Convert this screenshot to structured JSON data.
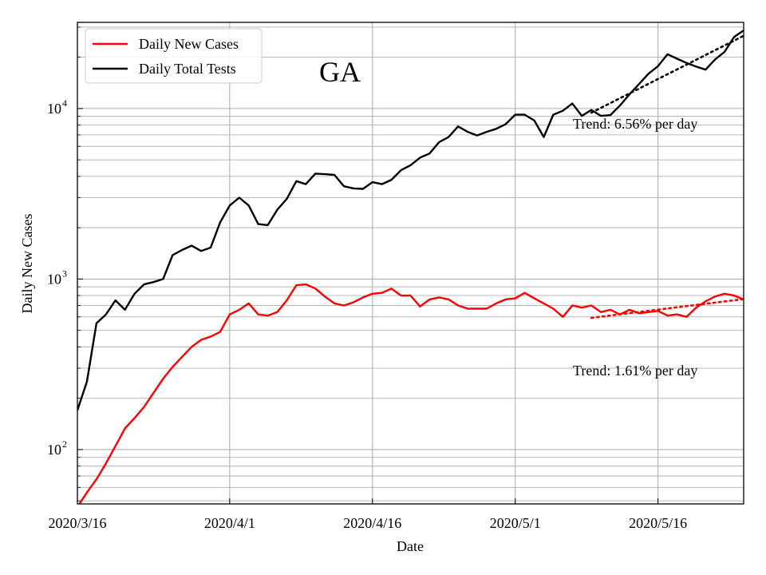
{
  "chart_data": {
    "type": "line",
    "title": "GA",
    "xlabel": "Date",
    "ylabel": "Daily New Cases",
    "yscale": "log",
    "ylim": [
      48,
      32000
    ],
    "xlim": [
      "2020-03-16",
      "2020-05-25"
    ],
    "grid": true,
    "grid_minor_y": true,
    "legend_position": "top-left",
    "x_ticks": [
      "2020/3/16",
      "2020/4/1",
      "2020/4/16",
      "2020/5/1",
      "2020/5/16"
    ],
    "y_ticks": [
      {
        "base": "10",
        "exp": "2",
        "value": 100
      },
      {
        "base": "10",
        "exp": "3",
        "value": 1000
      },
      {
        "base": "10",
        "exp": "4",
        "value": 10000
      }
    ],
    "series": [
      {
        "name": "Daily New Cases",
        "color": "#ff0000",
        "x": [
          "2020-03-16",
          "2020-03-17",
          "2020-03-18",
          "2020-03-19",
          "2020-03-20",
          "2020-03-21",
          "2020-03-22",
          "2020-03-23",
          "2020-03-24",
          "2020-03-25",
          "2020-03-26",
          "2020-03-27",
          "2020-03-28",
          "2020-03-29",
          "2020-03-30",
          "2020-03-31",
          "2020-04-01",
          "2020-04-02",
          "2020-04-03",
          "2020-04-04",
          "2020-04-05",
          "2020-04-06",
          "2020-04-07",
          "2020-04-08",
          "2020-04-09",
          "2020-04-10",
          "2020-04-11",
          "2020-04-12",
          "2020-04-13",
          "2020-04-14",
          "2020-04-15",
          "2020-04-16",
          "2020-04-17",
          "2020-04-18",
          "2020-04-19",
          "2020-04-20",
          "2020-04-21",
          "2020-04-22",
          "2020-04-23",
          "2020-04-24",
          "2020-04-25",
          "2020-04-26",
          "2020-04-27",
          "2020-04-28",
          "2020-04-29",
          "2020-04-30",
          "2020-05-01",
          "2020-05-02",
          "2020-05-03",
          "2020-05-04",
          "2020-05-05",
          "2020-05-06",
          "2020-05-07",
          "2020-05-08",
          "2020-05-09",
          "2020-05-10",
          "2020-05-11",
          "2020-05-12",
          "2020-05-13",
          "2020-05-14",
          "2020-05-15",
          "2020-05-16",
          "2020-05-17",
          "2020-05-18",
          "2020-05-19",
          "2020-05-20",
          "2020-05-21",
          "2020-05-22",
          "2020-05-23",
          "2020-05-24",
          "2020-05-25"
        ],
        "values": [
          46,
          56,
          67,
          83,
          105,
          133,
          153,
          178,
          215,
          260,
          305,
          350,
          400,
          440,
          460,
          490,
          620,
          660,
          720,
          620,
          610,
          640,
          750,
          920,
          930,
          880,
          790,
          720,
          700,
          730,
          780,
          820,
          830,
          880,
          800,
          800,
          690,
          760,
          780,
          760,
          700,
          670,
          670,
          670,
          720,
          760,
          770,
          830,
          770,
          720,
          670,
          600,
          700,
          680,
          700,
          640,
          660,
          620,
          660,
          630,
          640,
          650,
          610,
          620,
          600,
          680,
          740,
          790,
          820,
          800,
          760
        ]
      },
      {
        "name": "Daily Total Tests",
        "color": "#000000",
        "x": [
          "2020-03-16",
          "2020-03-17",
          "2020-03-18",
          "2020-03-19",
          "2020-03-20",
          "2020-03-21",
          "2020-03-22",
          "2020-03-23",
          "2020-03-24",
          "2020-03-25",
          "2020-03-26",
          "2020-03-27",
          "2020-03-28",
          "2020-03-29",
          "2020-03-30",
          "2020-03-31",
          "2020-04-01",
          "2020-04-02",
          "2020-04-03",
          "2020-04-04",
          "2020-04-05",
          "2020-04-06",
          "2020-04-07",
          "2020-04-08",
          "2020-04-09",
          "2020-04-10",
          "2020-04-11",
          "2020-04-12",
          "2020-04-13",
          "2020-04-14",
          "2020-04-15",
          "2020-04-16",
          "2020-04-17",
          "2020-04-18",
          "2020-04-19",
          "2020-04-20",
          "2020-04-21",
          "2020-04-22",
          "2020-04-23",
          "2020-04-24",
          "2020-04-25",
          "2020-04-26",
          "2020-04-27",
          "2020-04-28",
          "2020-04-29",
          "2020-04-30",
          "2020-05-01",
          "2020-05-02",
          "2020-05-03",
          "2020-05-04",
          "2020-05-05",
          "2020-05-06",
          "2020-05-07",
          "2020-05-08",
          "2020-05-09",
          "2020-05-10",
          "2020-05-11",
          "2020-05-12",
          "2020-05-13",
          "2020-05-14",
          "2020-05-15",
          "2020-05-16",
          "2020-05-17",
          "2020-05-18",
          "2020-05-19",
          "2020-05-20",
          "2020-05-21",
          "2020-05-22",
          "2020-05-23",
          "2020-05-24",
          "2020-05-25"
        ],
        "values": [
          170,
          250,
          550,
          620,
          750,
          660,
          820,
          930,
          960,
          1000,
          1380,
          1480,
          1570,
          1460,
          1530,
          2150,
          2700,
          3000,
          2700,
          2100,
          2070,
          2550,
          2950,
          3750,
          3600,
          4150,
          4120,
          4080,
          3500,
          3400,
          3380,
          3700,
          3600,
          3820,
          4350,
          4650,
          5150,
          5450,
          6350,
          6800,
          7850,
          7300,
          6950,
          7300,
          7600,
          8100,
          9200,
          9200,
          8500,
          6800,
          9200,
          9700,
          10700,
          9050,
          9800,
          9050,
          9150,
          10400,
          12100,
          13900,
          16000,
          17700,
          20800,
          19600,
          18500,
          17600,
          16900,
          19400,
          21500,
          26300,
          28700
        ]
      }
    ],
    "trend_lines": [
      {
        "series": "Daily Total Tests",
        "color": "#000000",
        "x": [
          "2020-05-09",
          "2020-05-25"
        ],
        "values": [
          9450,
          26700
        ]
      },
      {
        "series": "Daily New Cases",
        "color": "#ff0000",
        "x": [
          "2020-05-09",
          "2020-05-25"
        ],
        "values": [
          592,
          763
        ]
      }
    ],
    "annotations": [
      {
        "text": "Trend: 6.56% per day"
      },
      {
        "text": "Trend: 1.61% per day"
      }
    ]
  }
}
